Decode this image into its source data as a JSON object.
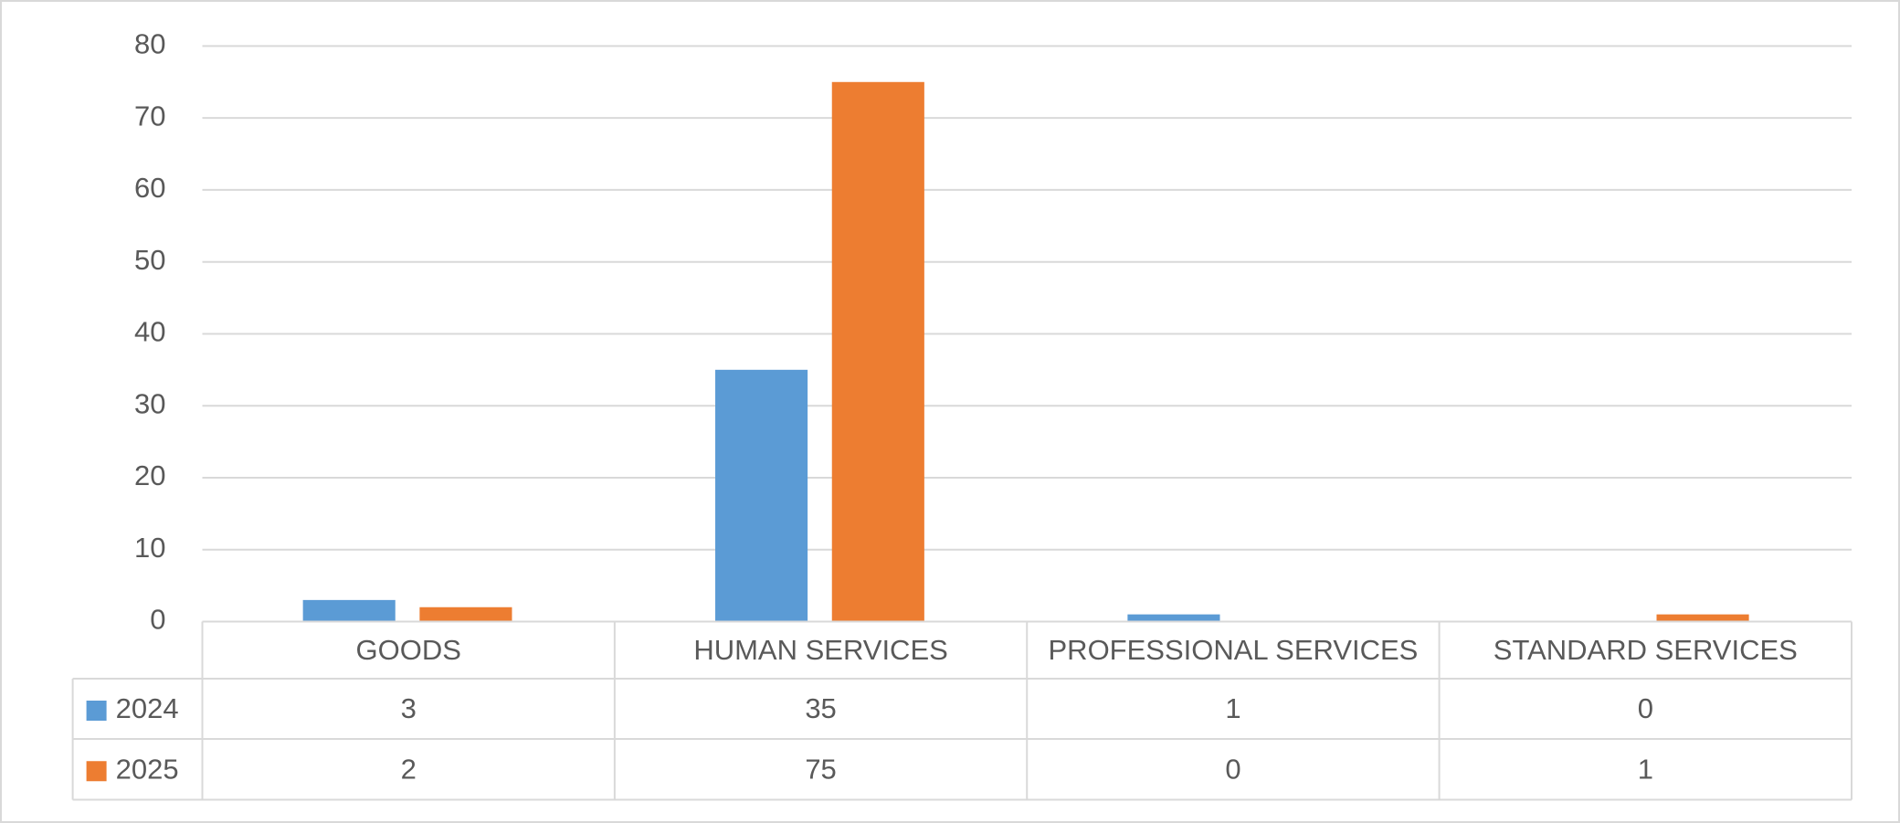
{
  "chart_data": {
    "type": "bar",
    "categories": [
      "GOODS",
      "HUMAN SERVICES",
      "PROFESSIONAL SERVICES",
      "STANDARD SERVICES"
    ],
    "series": [
      {
        "name": "2024",
        "color": "#5b9bd5",
        "values": [
          3,
          35,
          1,
          0
        ]
      },
      {
        "name": "2025",
        "color": "#ed7d31",
        "values": [
          2,
          75,
          0,
          1
        ]
      }
    ],
    "ylim": [
      0,
      80
    ],
    "yticks": [
      0,
      10,
      20,
      30,
      40,
      50,
      60,
      70,
      80
    ],
    "grid": true,
    "data_table": true
  }
}
